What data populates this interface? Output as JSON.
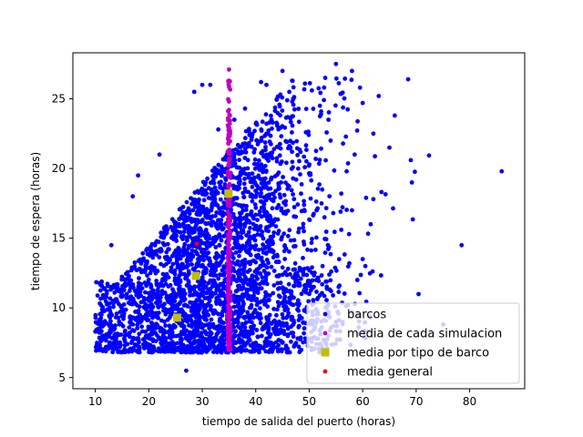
{
  "chart_data": {
    "type": "scatter",
    "xlabel": "tiempo de salida del puerto (horas)",
    "ylabel": "tiempo de espera (horas)",
    "xlim": [
      5.8,
      90.3
    ],
    "ylim": [
      4.2,
      28.3
    ],
    "xticks": [
      10,
      20,
      30,
      40,
      50,
      60,
      70,
      80
    ],
    "yticks": [
      5,
      10,
      15,
      20,
      25
    ],
    "legend_position": "lower right",
    "series": [
      {
        "name": "barcos",
        "color": "#0000ff",
        "marker": "circle",
        "description_cloud": {
          "x_mean": 33,
          "x_sd": 11,
          "x_min": 9.9,
          "x_max": 86,
          "y_base": 6.8,
          "y_spread": 18.5
        },
        "points": [
          [
            10.0,
            8.3
          ],
          [
            10.5,
            7.3
          ],
          [
            12.0,
            7.2
          ],
          [
            16.0,
            7.4
          ],
          [
            22.0,
            7.0
          ],
          [
            27.0,
            5.5
          ],
          [
            34.0,
            7.2
          ],
          [
            42.0,
            7.8
          ],
          [
            55.0,
            27.5
          ],
          [
            58.0,
            27.0
          ],
          [
            53.0,
            26.5
          ],
          [
            68.5,
            26.4
          ],
          [
            69.0,
            20.6
          ],
          [
            69.2,
            19.0
          ],
          [
            86.0,
            19.8
          ],
          [
            78.5,
            14.5
          ],
          [
            60.0,
            13.5
          ],
          [
            60.5,
            13.0
          ],
          [
            61.5,
            16.0
          ],
          [
            62.0,
            17.8
          ],
          [
            65.0,
            21.5
          ],
          [
            62.0,
            22.5
          ],
          [
            60.0,
            24.7
          ],
          [
            59.5,
            25.8
          ],
          [
            63.0,
            25.2
          ],
          [
            66.0,
            23.8
          ],
          [
            57.0,
            19.8
          ],
          [
            56.0,
            18.2
          ],
          [
            58.5,
            21.0
          ],
          [
            54.0,
            22.0
          ],
          [
            52.0,
            24.5
          ],
          [
            50.5,
            25.6
          ],
          [
            47.0,
            25.0
          ],
          [
            45.0,
            27.0
          ],
          [
            42.0,
            26.0
          ],
          [
            41.0,
            26.2
          ],
          [
            38.0,
            24.3
          ],
          [
            30.0,
            26.0
          ],
          [
            28.5,
            25.5
          ],
          [
            31.5,
            26.0
          ],
          [
            22.0,
            21.0
          ],
          [
            18.0,
            19.5
          ],
          [
            17.0,
            18.0
          ],
          [
            13.0,
            14.5
          ],
          [
            11.0,
            9.0
          ],
          [
            50.0,
            11.0
          ],
          [
            52.0,
            10.9
          ],
          [
            55.0,
            9.0
          ],
          [
            58.0,
            9.7
          ],
          [
            51.0,
            8.5
          ],
          [
            48.0,
            9.8
          ],
          [
            47.0,
            8.8
          ],
          [
            45.0,
            7.5
          ],
          [
            40.0,
            7.5
          ],
          [
            38.0,
            8.6
          ],
          [
            44.0,
            13.8
          ],
          [
            49.0,
            15.5
          ],
          [
            53.5,
            14.5
          ],
          [
            56.0,
            15.6
          ],
          [
            54.5,
            16.8
          ],
          [
            58.0,
            17.0
          ],
          [
            57.5,
            13.2
          ],
          [
            59.0,
            12.0
          ],
          [
            55.5,
            11.5
          ],
          [
            52.5,
            13.0
          ],
          [
            46.0,
            18.8
          ],
          [
            46.5,
            21.5
          ],
          [
            44.0,
            23.2
          ],
          [
            36.0,
            23.5
          ],
          [
            33.0,
            22.8
          ]
        ]
      },
      {
        "name": "media de cada simulacion",
        "color": "#bf00bf",
        "marker": "circle",
        "x_value": 35.0,
        "y_range": [
          7.0,
          27.1
        ]
      },
      {
        "name": "media por tipo de barco",
        "color": "#bfbf00",
        "marker": "square",
        "points": [
          [
            25.3,
            9.3
          ],
          [
            28.8,
            12.3
          ],
          [
            34.9,
            18.2
          ]
        ]
      },
      {
        "name": "media general",
        "color": "#ff0000",
        "marker": "circle",
        "points": [
          [
            29.0,
            14.6
          ]
        ]
      }
    ]
  }
}
